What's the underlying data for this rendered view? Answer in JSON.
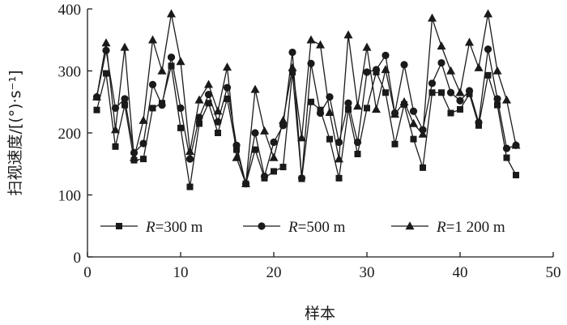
{
  "chart_data": {
    "type": "line",
    "xlabel": "样本",
    "ylabel": "扫视速度/[(°)·s⁻¹]",
    "xlim": [
      0,
      50
    ],
    "ylim": [
      0,
      400
    ],
    "xticks": [
      0,
      10,
      20,
      30,
      40,
      50
    ],
    "yticks": [
      0,
      100,
      200,
      300,
      400
    ],
    "grid": false,
    "legend_position": "bottom-inside",
    "x": [
      1,
      2,
      3,
      4,
      5,
      6,
      7,
      8,
      9,
      10,
      11,
      12,
      13,
      14,
      15,
      16,
      17,
      18,
      19,
      20,
      21,
      22,
      23,
      24,
      25,
      26,
      27,
      28,
      29,
      30,
      31,
      32,
      33,
      34,
      35,
      36,
      37,
      38,
      39,
      40,
      41,
      42,
      43,
      44,
      45,
      46
    ],
    "series": [
      {
        "name": "R=300 m",
        "name_italic": "R",
        "name_rest": "=300 m",
        "marker": "square",
        "values": [
          237,
          296,
          178,
          245,
          156,
          158,
          240,
          248,
          308,
          208,
          113,
          215,
          248,
          200,
          255,
          173,
          118,
          173,
          127,
          138,
          145,
          298,
          126,
          250,
          237,
          190,
          127,
          238,
          166,
          240,
          298,
          265,
          182,
          246,
          190,
          144,
          265,
          265,
          232,
          238,
          263,
          212,
          293,
          245,
          160,
          132
        ]
      },
      {
        "name": "R=500 m",
        "name_italic": "R",
        "name_rest": "=500 m",
        "marker": "circle",
        "values": [
          258,
          333,
          240,
          255,
          168,
          183,
          278,
          245,
          322,
          240,
          158,
          225,
          262,
          218,
          273,
          180,
          118,
          200,
          130,
          185,
          212,
          330,
          127,
          312,
          232,
          258,
          185,
          248,
          185,
          298,
          302,
          325,
          232,
          310,
          235,
          205,
          280,
          313,
          265,
          252,
          268,
          217,
          335,
          255,
          175,
          180
        ]
      },
      {
        "name": "R=1 200 m",
        "name_italic": "R",
        "name_rest": "=1 200 m",
        "marker": "triangle",
        "values": [
          258,
          345,
          205,
          338,
          160,
          220,
          350,
          300,
          392,
          315,
          170,
          253,
          278,
          235,
          306,
          160,
          118,
          270,
          203,
          160,
          220,
          305,
          192,
          350,
          342,
          233,
          158,
          358,
          243,
          338,
          238,
          302,
          230,
          250,
          215,
          198,
          385,
          340,
          300,
          265,
          346,
          305,
          392,
          300,
          253,
          180
        ]
      }
    ]
  }
}
